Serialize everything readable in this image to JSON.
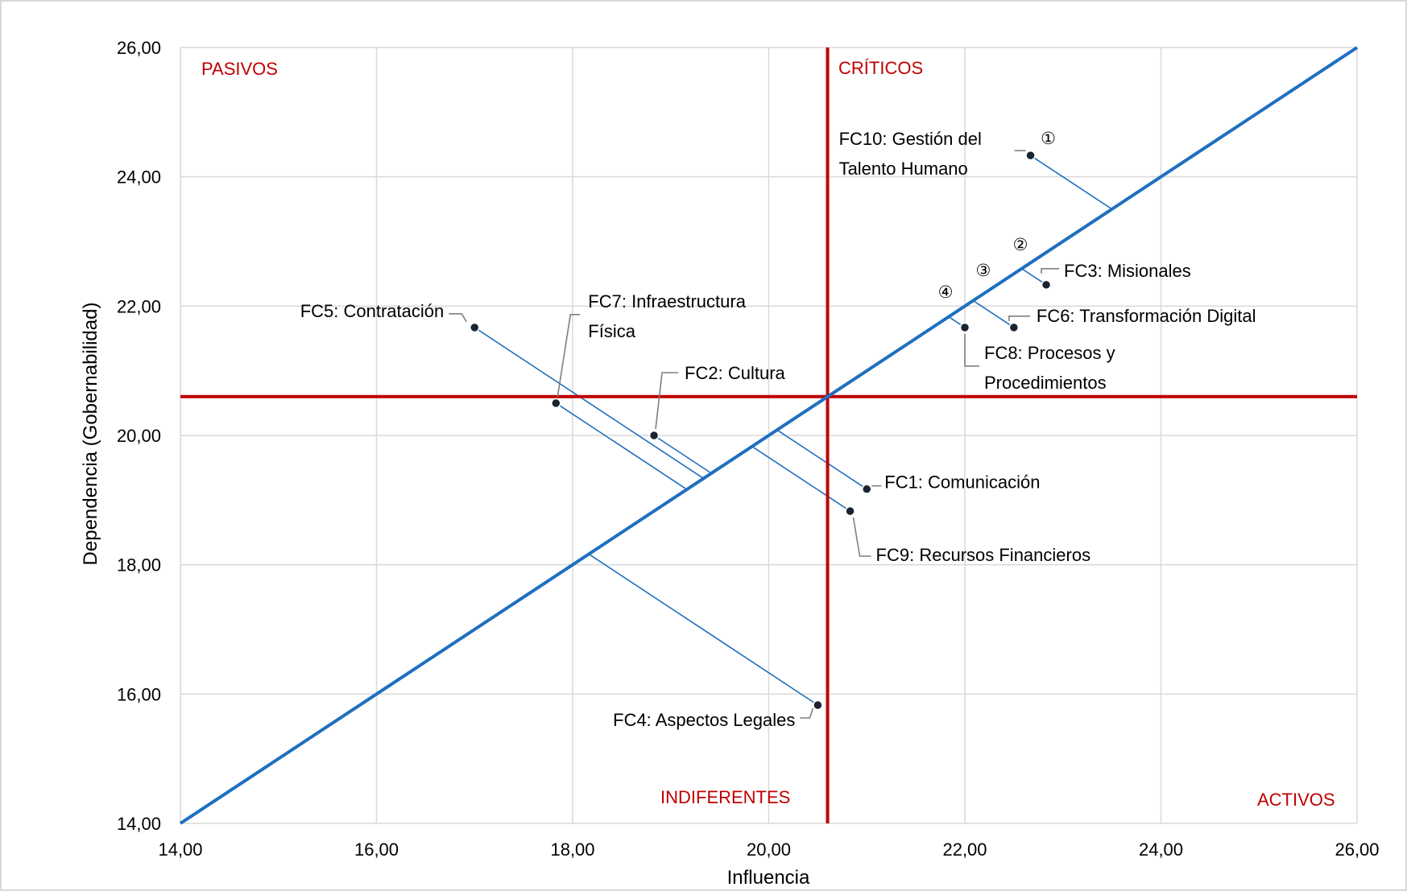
{
  "chart_data": {
    "type": "scatter",
    "xlabel": "Influencia",
    "ylabel": "Dependencia (Gobernabilidad)",
    "xlim": [
      14,
      26
    ],
    "ylim": [
      14,
      26
    ],
    "x_ticks": [
      "14,00",
      "16,00",
      "18,00",
      "20,00",
      "22,00",
      "24,00",
      "26,00"
    ],
    "y_ticks": [
      "14,00",
      "16,00",
      "18,00",
      "20,00",
      "22,00",
      "24,00",
      "26,00"
    ],
    "grid": true,
    "threshold_x": 20.6,
    "threshold_y": 20.6,
    "diagonal_from": [
      14,
      14
    ],
    "diagonal_to": [
      26,
      26
    ],
    "quadrants": {
      "pasivos": "PASIVOS",
      "criticos": "CRÍTICOS",
      "indiferentes": "INDIFERENTES",
      "activos": "ACTIVOS"
    },
    "points": [
      {
        "id": "fc10",
        "x": 22.67,
        "y": 24.33,
        "label_lines": [
          "FC10: Gestión del",
          "Talento Humano"
        ]
      },
      {
        "id": "fc3",
        "x": 22.83,
        "y": 22.33,
        "label_lines": [
          "FC3: Misionales"
        ]
      },
      {
        "id": "fc6",
        "x": 22.5,
        "y": 21.67,
        "label_lines": [
          "FC6: Transformación Digital"
        ]
      },
      {
        "id": "fc8",
        "x": 22.0,
        "y": 21.67,
        "label_lines": [
          "FC8: Procesos y",
          "Procedimientos"
        ]
      },
      {
        "id": "fc5",
        "x": 17.0,
        "y": 21.67,
        "label_lines": [
          "FC5: Contratación"
        ]
      },
      {
        "id": "fc7",
        "x": 17.83,
        "y": 20.5,
        "label_lines": [
          "FC7: Infraestructura",
          "Física"
        ]
      },
      {
        "id": "fc2",
        "x": 18.83,
        "y": 20.0,
        "label_lines": [
          "FC2: Cultura"
        ]
      },
      {
        "id": "fc1",
        "x": 21.0,
        "y": 19.17,
        "label_lines": [
          "FC1: Comunicación"
        ]
      },
      {
        "id": "fc9",
        "x": 20.83,
        "y": 18.83,
        "label_lines": [
          "FC9: Recursos Financieros"
        ]
      },
      {
        "id": "fc4",
        "x": 20.5,
        "y": 15.83,
        "label_lines": [
          "FC4: Aspectos Legales"
        ]
      }
    ],
    "ranking": [
      {
        "num": "①",
        "point": "fc10"
      },
      {
        "num": "②",
        "point": "fc3"
      },
      {
        "num": "③",
        "point": "fc6"
      },
      {
        "num": "④",
        "point": "fc8"
      }
    ],
    "colors": {
      "diagonal": "#1f6fbf",
      "threshold": "#c00000",
      "perpendicular": "#1f6fbf",
      "grid": "#d9d9d9",
      "point": "#1a2330",
      "leader": "#7f7f7f"
    }
  }
}
